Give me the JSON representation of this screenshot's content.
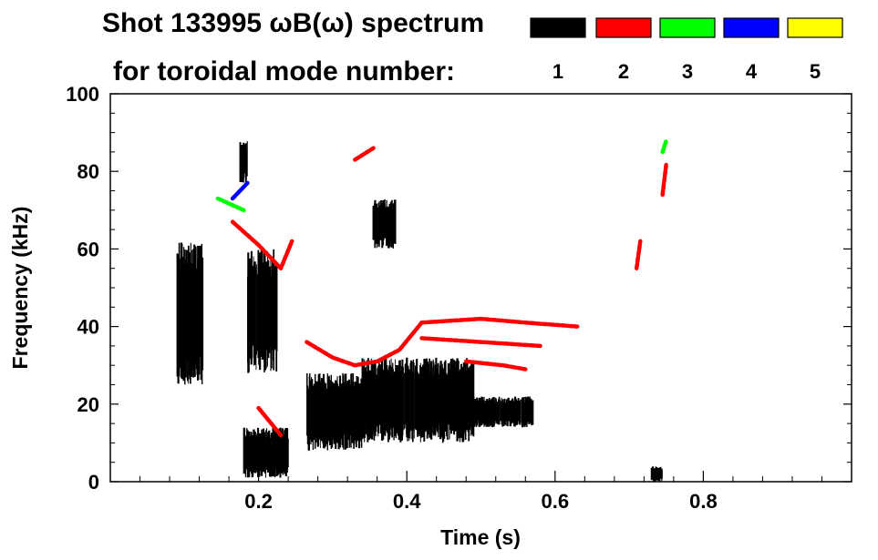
{
  "chart_data": {
    "type": "heatmap",
    "title": "Shot 133995 ωB(ω) spectrum",
    "subtitle": "for toroidal mode number:",
    "xlabel": "Time (s)",
    "ylabel": "Frequency (kHz)",
    "xlim": [
      0.0,
      1.0
    ],
    "ylim": [
      0,
      100
    ],
    "x_ticks": [
      0.2,
      0.4,
      0.6,
      0.8
    ],
    "x_tick_labels": [
      "0.2",
      "0.4",
      "0.6",
      "0.8"
    ],
    "y_ticks": [
      0,
      20,
      40,
      60,
      80,
      100
    ],
    "y_tick_labels": [
      "0",
      "20",
      "40",
      "60",
      "80",
      "100"
    ],
    "grid": false,
    "legend": {
      "placement": "top-right",
      "entries": [
        {
          "mode": "1",
          "color": "#000000"
        },
        {
          "mode": "2",
          "color": "#ff0000"
        },
        {
          "mode": "3",
          "color": "#00ff00"
        },
        {
          "mode": "4",
          "color": "#0000ff"
        },
        {
          "mode": "5",
          "color": "#ffff00"
        }
      ]
    },
    "series": [
      {
        "mode": "1",
        "color": "#000000",
        "regions": [
          {
            "t": [
              0.09,
              0.125
            ],
            "f": [
              25,
              62
            ]
          },
          {
            "t": [
              0.185,
              0.225
            ],
            "f": [
              28,
              60
            ]
          },
          {
            "t": [
              0.18,
              0.24
            ],
            "f": [
              1,
              14
            ]
          },
          {
            "t": [
              0.265,
              0.34
            ],
            "f": [
              8,
              28
            ]
          },
          {
            "t": [
              0.34,
              0.49
            ],
            "f": [
              10,
              32
            ]
          },
          {
            "t": [
              0.49,
              0.57
            ],
            "f": [
              14,
              22
            ]
          },
          {
            "t": [
              0.355,
              0.385
            ],
            "f": [
              60,
              73
            ]
          },
          {
            "t": [
              0.175,
              0.185
            ],
            "f": [
              77,
              88
            ]
          },
          {
            "t": [
              0.73,
              0.745
            ],
            "f": [
              0,
              4
            ]
          }
        ]
      },
      {
        "mode": "2",
        "color": "#ff0000",
        "tracks": [
          {
            "t": [
              0.165,
              0.2,
              0.23,
              0.245
            ],
            "f": [
              67,
              61,
              55,
              62
            ]
          },
          {
            "t": [
              0.265,
              0.3,
              0.33,
              0.36,
              0.39,
              0.42
            ],
            "f": [
              36,
              32,
              30,
              31,
              34,
              41
            ]
          },
          {
            "t": [
              0.42,
              0.5,
              0.56,
              0.63
            ],
            "f": [
              41,
              42,
              41,
              40
            ]
          },
          {
            "t": [
              0.42,
              0.5,
              0.58
            ],
            "f": [
              37,
              36,
              35
            ]
          },
          {
            "t": [
              0.48,
              0.53,
              0.56
            ],
            "f": [
              31,
              30,
              29
            ]
          },
          {
            "t": [
              0.33,
              0.355
            ],
            "f": [
              83,
              86
            ]
          },
          {
            "t": [
              0.2,
              0.23
            ],
            "f": [
              19,
              12
            ]
          },
          {
            "t": [
              0.71,
              0.715
            ],
            "f": [
              55,
              62
            ]
          },
          {
            "t": [
              0.745,
              0.75
            ],
            "f": [
              74,
              82
            ]
          }
        ]
      },
      {
        "mode": "3",
        "color": "#00ff00",
        "tracks": [
          {
            "t": [
              0.145,
              0.18
            ],
            "f": [
              73,
              70
            ]
          },
          {
            "t": [
              0.745,
              0.75
            ],
            "f": [
              85,
              88
            ]
          }
        ]
      },
      {
        "mode": "4",
        "color": "#0000ff",
        "tracks": [
          {
            "t": [
              0.165,
              0.185
            ],
            "f": [
              73,
              77
            ]
          }
        ]
      },
      {
        "mode": "5",
        "color": "#ffff00",
        "tracks": []
      }
    ]
  }
}
